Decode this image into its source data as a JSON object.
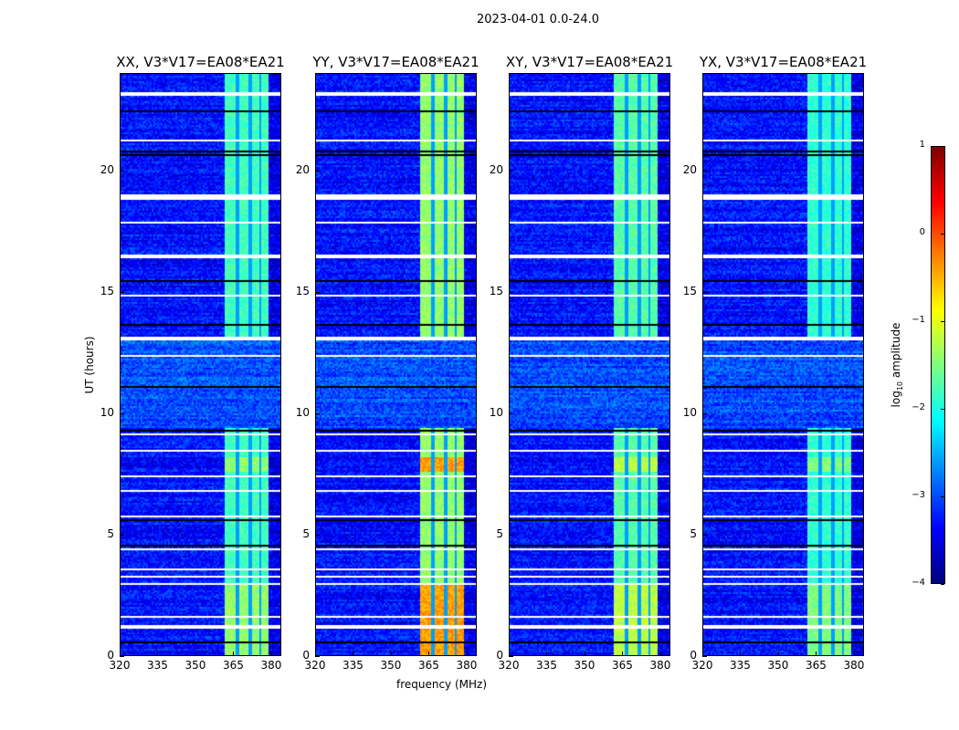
{
  "chart_data": {
    "type": "heatmap",
    "title": "2023-04-01 0.0-24.0",
    "xlabel": "frequency (MHz)",
    "ylabel": "UT (hours)",
    "xlim": [
      320,
      384
    ],
    "ylim": [
      0,
      24
    ],
    "xticks": [
      320,
      335,
      350,
      365,
      380
    ],
    "yticks": [
      0,
      5,
      10,
      15,
      20
    ],
    "colormap": "jet",
    "colorbar": {
      "range": [
        -4,
        1
      ],
      "ticks": [
        1,
        0,
        -1,
        -2,
        -3,
        -4
      ],
      "tick_labels": [
        "1",
        "0",
        "−1",
        "−2",
        "−3",
        "−4"
      ],
      "label_prefix": "log",
      "label_sub": "10",
      "label_suffix": " amplitude"
    },
    "background_level": -3.3,
    "bright_band_mhz": [
      361,
      379
    ],
    "sub_bands_mhz": [
      [
        361,
        366
      ],
      [
        367,
        371
      ],
      [
        372,
        375
      ],
      [
        376,
        379
      ]
    ],
    "band_quiet_hours": [
      9.4,
      13.2
    ],
    "flagged_hours": [
      23.2,
      19.0,
      18.9,
      17.9,
      21.3,
      16.5,
      14.9,
      13.1,
      12.4,
      9.15,
      8.5,
      7.4,
      6.8,
      5.74,
      4.4,
      3.6,
      3.26,
      2.96,
      1.6,
      1.2
    ],
    "no_data_hours": [
      20.86,
      20.7,
      22.5,
      15.5,
      13.7,
      11.1,
      9.34,
      5.6,
      4.55,
      0.56
    ],
    "panels": [
      {
        "title": "XX, V3*V17=EA08*EA21",
        "band_level": -1.8,
        "hot_level": -1.4
      },
      {
        "title": "YY, V3*V17=EA08*EA21",
        "band_level": -1.4,
        "hot_level": -0.4
      },
      {
        "title": "XY, V3*V17=EA08*EA21",
        "band_level": -1.7,
        "hot_level": -1.2
      },
      {
        "title": "YX, V3*V17=EA08*EA21",
        "band_level": -1.9,
        "hot_level": -1.5
      }
    ]
  }
}
